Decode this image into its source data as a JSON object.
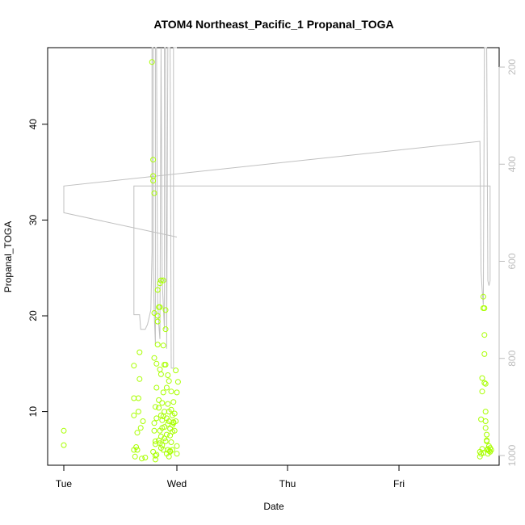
{
  "chart_data": {
    "type": "scatter",
    "title": "ATOM4 Northeast_Pacific_1 Propanal_TOGA",
    "xlabel": "Date",
    "ylabel": "Propanal_TOGA",
    "x_tick_labels": [
      "Tue",
      "Wed",
      "Thu",
      "Fri"
    ],
    "y_ticks": [
      10,
      20,
      30,
      40
    ],
    "ylim": [
      4.4,
      48
    ],
    "y2_ticks": [
      200,
      400,
      600,
      800,
      1000
    ],
    "y2lim": [
      1020,
      160
    ],
    "y2_reversed": true,
    "grid": false,
    "colors": {
      "points": "#a8ff00",
      "line": "#c0c0c0",
      "right_axis": "#bdbdbd"
    },
    "series": [
      {
        "kind": "points",
        "x_units": "days from Tue 00:00",
        "x": [
          0.0,
          0.0,
          0.62,
          0.62,
          0.62,
          0.62,
          0.63,
          0.64,
          0.65,
          0.65,
          0.66,
          0.66,
          0.67,
          0.67,
          0.68,
          0.69,
          0.7,
          0.72,
          0.78,
          0.79,
          0.79,
          0.79,
          0.8,
          0.8,
          0.8,
          0.8,
          0.81,
          0.81,
          0.81,
          0.81,
          0.82,
          0.82,
          0.82,
          0.83,
          0.83,
          0.83,
          0.83,
          0.84,
          0.84,
          0.84,
          0.85,
          0.85,
          0.85,
          0.85,
          0.86,
          0.86,
          0.86,
          0.86,
          0.87,
          0.87,
          0.87,
          0.88,
          0.88,
          0.88,
          0.88,
          0.89,
          0.89,
          0.89,
          0.9,
          0.9,
          0.9,
          0.91,
          0.91,
          0.91,
          0.92,
          0.92,
          0.92,
          0.93,
          0.93,
          0.93,
          0.94,
          0.94,
          0.94,
          0.95,
          0.95,
          0.96,
          0.96,
          0.96,
          0.97,
          0.97,
          0.98,
          0.98,
          0.99,
          0.99,
          1.0,
          1.0,
          1.0,
          1.01,
          0.79,
          0.8,
          0.81,
          0.84,
          0.86,
          0.88,
          0.9,
          0.92,
          0.94,
          0.96,
          0.82,
          0.85,
          0.87,
          0.89,
          0.91,
          0.93,
          0.95,
          0.97,
          3.68,
          3.68,
          3.69,
          3.69,
          3.7,
          3.7,
          3.7,
          3.71,
          3.71,
          3.71,
          3.72,
          3.72,
          3.72,
          3.72,
          3.73,
          3.73,
          3.73,
          3.73,
          3.74,
          3.74,
          3.74,
          3.75,
          3.75,
          3.75,
          3.76,
          3.76,
          3.77,
          3.77,
          3.78
        ],
        "y": [
          8.0,
          6.5,
          14.8,
          9.6,
          11.4,
          6.0,
          5.3,
          6.3,
          6.0,
          7.8,
          11.4,
          10.0,
          16.2,
          13.4,
          8.3,
          5.1,
          9.0,
          5.2,
          46.5,
          36.3,
          34.6,
          34.1,
          32.8,
          20.3,
          15.6,
          8.8,
          6.9,
          5.4,
          6.6,
          5.0,
          9.3,
          12.5,
          15.0,
          19.4,
          20.0,
          17.0,
          22.7,
          20.9,
          10.4,
          7.0,
          23.4,
          20.9,
          14.4,
          8.0,
          23.7,
          13.9,
          9.6,
          6.2,
          10.9,
          8.3,
          6.5,
          23.7,
          16.9,
          12.0,
          6.0,
          14.9,
          10.0,
          8.4,
          20.6,
          18.6,
          14.9,
          9.3,
          7.6,
          5.6,
          13.8,
          8.7,
          6.0,
          13.2,
          9.0,
          5.3,
          5.8,
          7.5,
          8.2,
          12.1,
          10.2,
          9.6,
          7.9,
          6.0,
          11.0,
          8.8,
          9.8,
          8.0,
          14.3,
          9.0,
          6.4,
          12.0,
          5.6,
          13.1,
          5.8,
          8.0,
          10.5,
          11.2,
          7.4,
          9.5,
          6.9,
          10.8,
          5.9,
          8.6,
          5.5,
          6.7,
          9.1,
          7.2,
          12.5,
          10.0,
          6.8,
          8.9,
          5.3,
          5.8,
          5.6,
          9.2,
          6.1,
          12.1,
          13.5,
          22.0,
          20.8,
          5.7,
          20.8,
          18.0,
          16.0,
          13.0,
          12.9,
          10.0,
          9.0,
          8.3,
          7.6,
          7.0,
          6.9,
          6.1,
          6.0,
          5.6,
          5.9,
          6.4,
          6.2,
          5.8,
          6.0
        ]
      },
      {
        "kind": "line",
        "axis": "right",
        "x_units": "days from Tue 00:00",
        "x": [
          0.0,
          1.0,
          0.0,
          0.0,
          3.68,
          3.69,
          3.7,
          3.71,
          3.72,
          3.73,
          3.74,
          3.75,
          3.76,
          3.77,
          3.77,
          0.62,
          0.62,
          0.63,
          0.64,
          0.65,
          0.66,
          0.67,
          0.68,
          0.69,
          0.7,
          0.71,
          0.72,
          0.74,
          0.75,
          0.76,
          0.77,
          0.78,
          0.78,
          0.79,
          0.79,
          0.8,
          0.81,
          0.81,
          0.82,
          0.83,
          0.84,
          0.85,
          0.86,
          0.86,
          0.87,
          0.88,
          0.89,
          0.89,
          0.9,
          0.91,
          0.91,
          0.92,
          0.93,
          0.94,
          0.95,
          0.95,
          0.96,
          0.96,
          0.97,
          0.97,
          0.98,
          0.99,
          1.0
        ],
        "y": [
          500,
          550,
          500,
          445,
          353,
          620,
          660,
          690,
          160,
          160,
          160,
          640,
          650,
          640,
          445,
          445,
          710,
          710,
          710,
          710,
          710,
          710,
          740,
          740,
          740,
          740,
          740,
          730,
          720,
          710,
          700,
          580,
          160,
          160,
          610,
          710,
          770,
          160,
          160,
          680,
          730,
          760,
          160,
          160,
          640,
          690,
          740,
          160,
          160,
          740,
          780,
          160,
          160,
          160,
          820,
          820,
          820,
          820,
          820,
          160,
          160,
          160,
          160
        ]
      }
    ]
  }
}
